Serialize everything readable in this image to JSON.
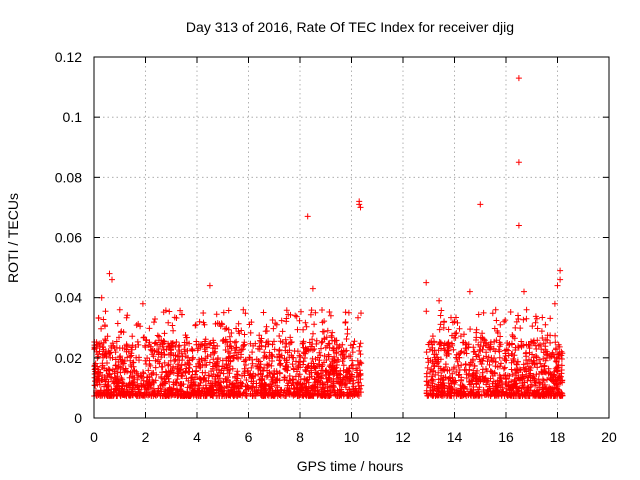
{
  "chart_data": {
    "type": "scatter",
    "title": "Day 313 of 2016, Rate Of TEC Index for receiver djig",
    "xlabel": "GPS time / hours",
    "ylabel": "ROTI / TECUs",
    "xlim": [
      0,
      20
    ],
    "ylim": [
      0,
      0.12
    ],
    "xticks": [
      0,
      2,
      4,
      6,
      8,
      10,
      12,
      14,
      16,
      18,
      20
    ],
    "yticks": [
      0,
      0.02,
      0.04,
      0.06,
      0.08,
      0.1,
      0.12
    ],
    "xtick_labels": [
      "0",
      "2",
      "4",
      "6",
      "8",
      "10",
      "12",
      "14",
      "16",
      "18",
      "20"
    ],
    "ytick_labels": [
      "0",
      "0.02",
      "0.04",
      "0.06",
      "0.08",
      "0.1",
      "0.12"
    ],
    "grid": true,
    "marker": "+",
    "color": "#ff0000",
    "series": [
      {
        "name": "ROTI",
        "segments": [
          {
            "x_range": [
              0.0,
              10.4
            ],
            "value_range": [
              0.004,
              0.026
            ]
          },
          {
            "x_range": [
              12.9,
              18.2
            ],
            "value_range": [
              0.004,
              0.026
            ]
          }
        ],
        "notable_points": [
          {
            "x": 0.6,
            "y": 0.048
          },
          {
            "x": 0.7,
            "y": 0.046
          },
          {
            "x": 0.3,
            "y": 0.04
          },
          {
            "x": 1.0,
            "y": 0.036
          },
          {
            "x": 1.9,
            "y": 0.038
          },
          {
            "x": 4.1,
            "y": 0.032
          },
          {
            "x": 4.5,
            "y": 0.044
          },
          {
            "x": 5.8,
            "y": 0.036
          },
          {
            "x": 7.1,
            "y": 0.031
          },
          {
            "x": 8.3,
            "y": 0.067
          },
          {
            "x": 8.5,
            "y": 0.043
          },
          {
            "x": 8.6,
            "y": 0.035
          },
          {
            "x": 9.2,
            "y": 0.034
          },
          {
            "x": 9.9,
            "y": 0.035
          },
          {
            "x": 10.3,
            "y": 0.072
          },
          {
            "x": 10.35,
            "y": 0.07
          },
          {
            "x": 10.3,
            "y": 0.071
          },
          {
            "x": 12.9,
            "y": 0.045
          },
          {
            "x": 13.4,
            "y": 0.039
          },
          {
            "x": 14.0,
            "y": 0.032
          },
          {
            "x": 14.6,
            "y": 0.042
          },
          {
            "x": 15.0,
            "y": 0.071
          },
          {
            "x": 15.6,
            "y": 0.036
          },
          {
            "x": 16.5,
            "y": 0.113
          },
          {
            "x": 16.5,
            "y": 0.085
          },
          {
            "x": 16.5,
            "y": 0.064
          },
          {
            "x": 16.7,
            "y": 0.042
          },
          {
            "x": 16.8,
            "y": 0.036
          },
          {
            "x": 17.2,
            "y": 0.033
          },
          {
            "x": 17.9,
            "y": 0.038
          },
          {
            "x": 18.0,
            "y": 0.044
          },
          {
            "x": 18.1,
            "y": 0.049
          },
          {
            "x": 18.1,
            "y": 0.046
          }
        ]
      }
    ]
  }
}
